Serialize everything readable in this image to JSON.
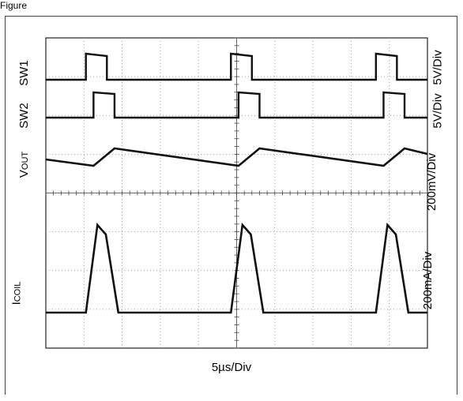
{
  "figure_label": "Figure",
  "chart_data": {
    "type": "line",
    "title": "",
    "timebase": "5µs/Div",
    "grid": true,
    "divisions": {
      "x": 10,
      "y": 8
    },
    "channels": [
      {
        "name": "SW1",
        "name_html": "SW1",
        "scale": "5V/Div"
      },
      {
        "name": "SW2",
        "name_html": "SW2",
        "scale": "5V/Div"
      },
      {
        "name": "VOUT",
        "label_main": "V",
        "label_sub": "OUT",
        "scale": "200mV/Div"
      },
      {
        "name": "ICOIL",
        "label_main": "I",
        "label_sub": "COIL",
        "scale": "200mA/Div"
      }
    ],
    "pulse_start_div": [
      1.05,
      4.85,
      8.65
    ],
    "sw1_high_div": 0.55,
    "sw2_delay_div": 0.2,
    "sw2_high_div": 0.55,
    "period_div": 3.8
  }
}
